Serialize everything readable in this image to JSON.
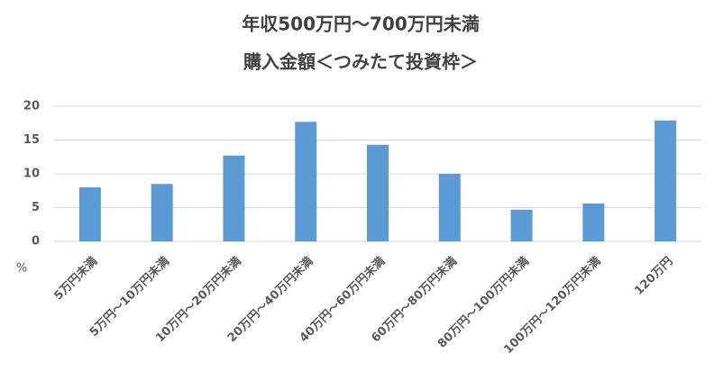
{
  "chart_data": {
    "type": "bar",
    "title": "年収500万円～700万円未満",
    "subtitle": "購入金額＜つみたて投資枠＞",
    "y_label": "%",
    "categories": [
      "5万円未満",
      "5万円～10万円未満",
      "10万円～20万円未満",
      "20万円～40万円未満",
      "40万円～60万円未満",
      "60万円～80万円未満",
      "80万円～100万円未満",
      "100万円～120万円未満",
      "120万円"
    ],
    "values": [
      8.0,
      8.5,
      12.7,
      17.7,
      14.3,
      10.0,
      4.7,
      5.6,
      17.9
    ],
    "color": "#5b9bd5",
    "ylim": [
      0,
      20
    ],
    "yticks": [
      0,
      5,
      10,
      15,
      20
    ],
    "grid": true
  }
}
